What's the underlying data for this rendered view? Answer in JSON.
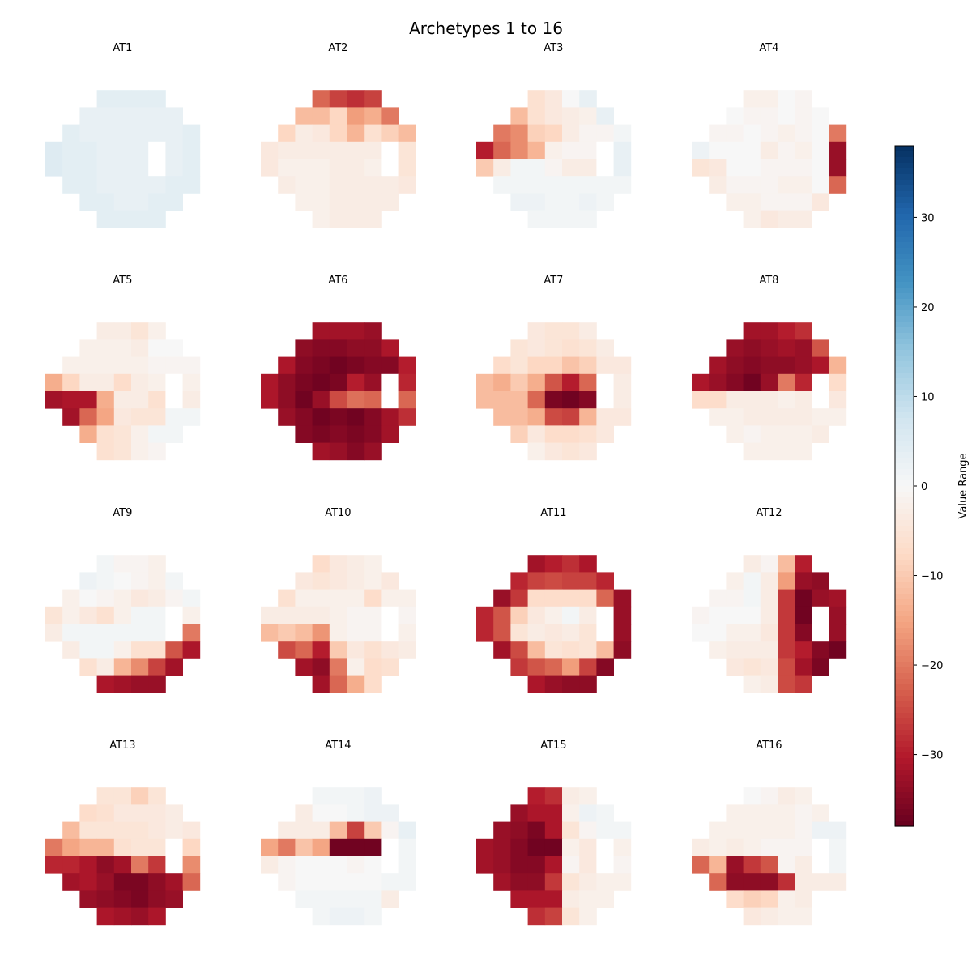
{
  "title": "Archetypes 1 to 16",
  "colorbar": {
    "label": "Value Range",
    "ticks": [
      30,
      20,
      10,
      0,
      -10,
      -20,
      -30
    ],
    "range": [
      -38,
      38
    ],
    "colormap": "RdBu"
  },
  "chart_data": {
    "type": "heatmap",
    "grid_size": 9,
    "panels": [
      {
        "name": "AT1",
        "cells": [
          "-,-,-,4,4,4,4,-,-",
          "-,-,3,3,3,3,3,3,-",
          "-,4,3,3,3,3,3,3,4",
          "5,4,4,3,3,3,N,3,4",
          "5,4,4,3,3,3,N,3,4",
          "-,4,4,3,3,3,3,4,4",
          "-,-,4,4,3,3,4,4,-",
          "-,-,-,4,4,4,4,-,-",
          "-,-,-,-,-,-,-,-,-"
        ]
      },
      {
        "name": "AT2",
        "cells": [
          "-,-,-,-,-,-,-,-,-",
          "-,-,-,-,-,-,-,-,-",
          "-,-,-,-,-,-,-,-,-",
          "-,-,-,-,-,-,-,-,-",
          "-,-,-,-,-,-,-,-,-",
          "-,-,-,-,-,-,-,-,-",
          "-,-,-,-,-,-,-,-,-",
          "-,-,-,-,-,-,-,-,-",
          "-,-,-,-,-,-,-,-,-"
        ]
      },
      {
        "name": "AT3",
        "cells": [
          "-,-,-,-,-,-,-,-,-",
          "-,-,-,-,-,-,-,-,-",
          "-,-,-,-,-,-,-,-,-",
          "-,-,-,-,-,-,-,-,-",
          "-,-,-,-,-,-,-,-,-",
          "-,-,-,-,-,-,-,-,-",
          "-,-,-,-,-,-,-,-,-",
          "-,-,-,-,-,-,-,-,-",
          "-,-,-,-,-,-,-,-,-"
        ]
      },
      {
        "name": "AT4",
        "cells": [
          "-,-,-,-,-,-,-,-,-",
          "-,-,-,-,-,-,-,-,-",
          "-,-,-,-,-,-,-,-,-",
          "-,-,-,-,-,-,-,-,-",
          "-,-,-,-,-,-,-,-,-",
          "-,-,-,-,-,-,-,-,-",
          "-,-,-,-,-,-,-,-,-",
          "-,-,-,-,-,-,-,-,-",
          "-,-,-,-,-,-,-,-,-"
        ]
      },
      {
        "name": "AT5",
        "cells": [
          "-,-,-,-,-,-,-,-,-",
          "-,-,-,-,-,-,-,-,-",
          "-,-,-,-,-,-,-,-,-",
          "-,-,-,-,-,-,-,-,-",
          "-,-,-,-,-,-,-,-,-",
          "-,-,-,-,-,-,-,-,-",
          "-,-,-,-,-,-,-,-,-",
          "-,-,-,-,-,-,-,-,-",
          "-,-,-,-,-,-,-,-,-"
        ]
      },
      {
        "name": "AT6",
        "cells": [
          "-,-,-,-,-,-,-,-,-",
          "-,-,-,-,-,-,-,-,-",
          "-,-,-,-,-,-,-,-,-",
          "-,-,-,-,-,-,-,-,-",
          "-,-,-,-,-,-,-,-,-",
          "-,-,-,-,-,-,-,-,-",
          "-,-,-,-,-,-,-,-,-",
          "-,-,-,-,-,-,-,-,-",
          "-,-,-,-,-,-,-,-,-"
        ]
      },
      {
        "name": "AT7",
        "cells": [
          "-,-,-,-,-,-,-,-,-",
          "-,-,-,-,-,-,-,-,-",
          "-,-,-,-,-,-,-,-,-",
          "-,-,-,-,-,-,-,-,-",
          "-,-,-,-,-,-,-,-,-",
          "-,-,-,-,-,-,-,-,-",
          "-,-,-,-,-,-,-,-,-",
          "-,-,-,-,-,-,-,-,-",
          "-,-,-,-,-,-,-,-,-"
        ]
      },
      {
        "name": "AT8",
        "cells": [
          "-,-,-,-,-,-,-,-,-",
          "-,-,-,-,-,-,-,-,-",
          "-,-,-,-,-,-,-,-,-",
          "-,-,-,-,-,-,-,-,-",
          "-,-,-,-,-,-,-,-,-",
          "-,-,-,-,-,-,-,-,-",
          "-,-,-,-,-,-,-,-,-",
          "-,-,-,-,-,-,-,-,-",
          "-,-,-,-,-,-,-,-,-"
        ]
      },
      {
        "name": "AT9",
        "cells": [
          "-,-,-,-,-,-,-,-,-",
          "-,-,-,-,-,-,-,-,-",
          "-,-,-,-,-,-,-,-,-",
          "-,-,-,-,-,-,-,-,-",
          "-,-,-,-,-,-,-,-,-",
          "-,-,-,-,-,-,-,-,-",
          "-,-,-,-,-,-,-,-,-",
          "-,-,-,-,-,-,-,-,-",
          "-,-,-,-,-,-,-,-,-"
        ]
      },
      {
        "name": "AT10",
        "cells": [
          "-,-,-,-,-,-,-,-,-",
          "-,-,-,-,-,-,-,-,-",
          "-,-,-,-,-,-,-,-,-",
          "-,-,-,-,-,-,-,-,-",
          "-,-,-,-,-,-,-,-,-",
          "-,-,-,-,-,-,-,-,-",
          "-,-,-,-,-,-,-,-,-",
          "-,-,-,-,-,-,-,-,-",
          "-,-,-,-,-,-,-,-,-"
        ]
      },
      {
        "name": "AT11",
        "cells": [
          "-,-,-,-,-,-,-,-,-",
          "-,-,-,-,-,-,-,-,-",
          "-,-,-,-,-,-,-,-,-",
          "-,-,-,-,-,-,-,-,-",
          "-,-,-,-,-,-,-,-,-",
          "-,-,-,-,-,-,-,-,-",
          "-,-,-,-,-,-,-,-,-",
          "-,-,-,-,-,-,-,-,-",
          "-,-,-,-,-,-,-,-,-"
        ]
      },
      {
        "name": "AT12",
        "cells": [
          "-,-,-,-,-,-,-,-,-",
          "-,-,-,-,-,-,-,-,-",
          "-,-,-,-,-,-,-,-,-",
          "-,-,-,-,-,-,-,-,-",
          "-,-,-,-,-,-,-,-,-",
          "-,-,-,-,-,-,-,-,-",
          "-,-,-,-,-,-,-,-,-",
          "-,-,-,-,-,-,-,-,-",
          "-,-,-,-,-,-,-,-,-"
        ]
      },
      {
        "name": "AT13",
        "cells": [
          "-,-,-,-,-,-,-,-,-",
          "-,-,-,-,-,-,-,-,-",
          "-,-,-,-,-,-,-,-,-",
          "-,-,-,-,-,-,-,-,-",
          "-,-,-,-,-,-,-,-,-",
          "-,-,-,-,-,-,-,-,-",
          "-,-,-,-,-,-,-,-,-",
          "-,-,-,-,-,-,-,-,-",
          "-,-,-,-,-,-,-,-,-"
        ]
      },
      {
        "name": "AT14",
        "cells": [
          "-,-,-,-,-,-,-,-,-",
          "-,-,-,-,-,-,-,-,-",
          "-,-,-,-,-,-,-,-,-",
          "-,-,-,-,-,-,-,-,-",
          "-,-,-,-,-,-,-,-,-",
          "-,-,-,-,-,-,-,-,-",
          "-,-,-,-,-,-,-,-,-",
          "-,-,-,-,-,-,-,-,-",
          "-,-,-,-,-,-,-,-,-"
        ]
      },
      {
        "name": "AT15",
        "cells": [
          "-,-,-,-,-,-,-,-,-",
          "-,-,-,-,-,-,-,-,-",
          "-,-,-,-,-,-,-,-,-",
          "-,-,-,-,-,-,-,-,-",
          "-,-,-,-,-,-,-,-,-",
          "-,-,-,-,-,-,-,-,-",
          "-,-,-,-,-,-,-,-,-",
          "-,-,-,-,-,-,-,-,-",
          "-,-,-,-,-,-,-,-,-"
        ]
      },
      {
        "name": "AT16",
        "cells": [
          "-,-,-,-,-,-,-,-,-",
          "-,-,-,-,-,-,-,-,-",
          "-,-,-,-,-,-,-,-,-",
          "-,-,-,-,-,-,-,-,-",
          "-,-,-,-,-,-,-,-,-",
          "-,-,-,-,-,-,-,-,-",
          "-,-,-,-,-,-,-,-,-",
          "-,-,-,-,-,-,-,-,-",
          "-,-,-,-,-,-,-,-,-"
        ]
      }
    ]
  }
}
